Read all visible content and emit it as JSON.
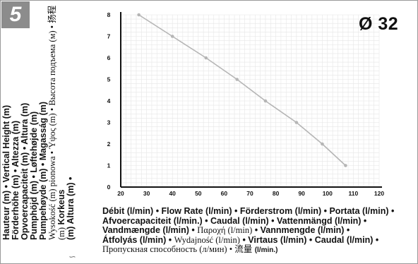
{
  "badge_number": "5",
  "diameter_label": "Ø 32",
  "y_axis_label": {
    "line1": "Hauteur (m) • Vertical Height (m)",
    "line2": "Förderhöhe (m) • Altezza (m)",
    "line3": "Opvoercapaciteit (m) • Altura (m)",
    "line4": "Pumphöjd (m) • Løftehøjde (m)",
    "line5": "Pumpehøyde (m) • Magasság (m)",
    "line6_thin": "Wysokość (m) pionowa • Ύψος (m) • Высота подъема (м) • 扬程 (m)",
    "line6_bold": "Korkeus",
    "line7_bold": "(m) Altura (m) •"
  },
  "x_axis_label": {
    "line1": "Débit (l/min) • Flow Rate (l/min) • Förderstrom (l/min) • Portata (l/min) •",
    "line2": "Afvoercapaciteit (l/min.) • Caudal (l/min) • Vattenmängd (l/min) •",
    "line3_bold": "Vandmængde (l/min) •",
    "line3_thin": "Παροχή (l/min)",
    "line3_bold2": "• Vannmengde (l/min) •",
    "line4_bold": "Átfolyás (l/min) •",
    "line4_thin": "Wydajność (l/min)",
    "line4_bold2": "• Virtaus (l/min) • Caudal (l/min) •",
    "line5_thin": "Пропускная способность (л/мин) • 流量",
    "line5_bold": "(l/min.)"
  },
  "colors": {
    "line": "#b5b5b5",
    "marker": "#b5b5b5",
    "axis": "#111111",
    "badge": "#8c8c8c"
  },
  "chart_data": {
    "type": "line",
    "x": [
      27,
      40,
      53,
      65,
      76,
      88,
      98,
      107
    ],
    "series": [
      {
        "values": [
          8,
          7,
          6,
          5,
          4,
          3,
          2,
          1
        ]
      }
    ],
    "x_ticks": [
      20,
      30,
      40,
      50,
      60,
      70,
      80,
      90,
      100,
      110,
      120
    ],
    "y_ticks": [
      0,
      1,
      2,
      3,
      4,
      5,
      6,
      7,
      8
    ],
    "xlim": [
      20,
      120
    ],
    "ylim": [
      0,
      8
    ],
    "grid": true,
    "legend": "none"
  }
}
